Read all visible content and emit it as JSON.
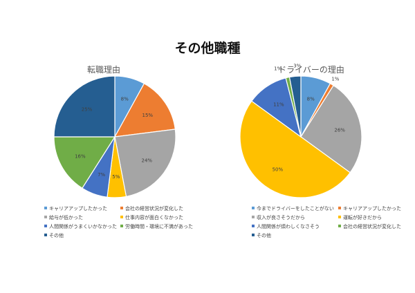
{
  "page_title": "その他職種",
  "chart_data": [
    {
      "type": "pie",
      "title": "転職理由",
      "categories": [
        "キャリアアップしたかった",
        "会社の経営状況が変化した",
        "給与が低かった",
        "仕事内容が面白くなかった",
        "人間関係がうまくいかなかった",
        "労働時間・環境に不満があった",
        "その他"
      ],
      "values": [
        8,
        15,
        24,
        5,
        7,
        16,
        25
      ],
      "labels": [
        "8%",
        "15%",
        "24%",
        "5%",
        "7%",
        "16%",
        "25%"
      ],
      "colors": [
        "#5B9BD5",
        "#ED7D31",
        "#A5A5A5",
        "#FFC000",
        "#4472C4",
        "#70AD47",
        "#255E91"
      ],
      "legend_position": "bottom"
    },
    {
      "type": "pie",
      "title": "ドライバーの理由",
      "categories": [
        "今までドライバーをしたことがない",
        "キャリアアップしたかった",
        "収入が良さそうだから",
        "運転が好きだから",
        "人間関係が煩わしくなさそう",
        "会社の経営状況が変化した",
        "その他"
      ],
      "values": [
        8,
        1,
        26,
        50,
        11,
        1,
        3
      ],
      "labels": [
        "8%",
        "1%",
        "26%",
        "50%",
        "11%",
        "1%",
        "3%"
      ],
      "colors": [
        "#5B9BD5",
        "#ED7D31",
        "#A5A5A5",
        "#FFC000",
        "#4472C4",
        "#70AD47",
        "#255E91"
      ],
      "legend_position": "bottom"
    }
  ]
}
